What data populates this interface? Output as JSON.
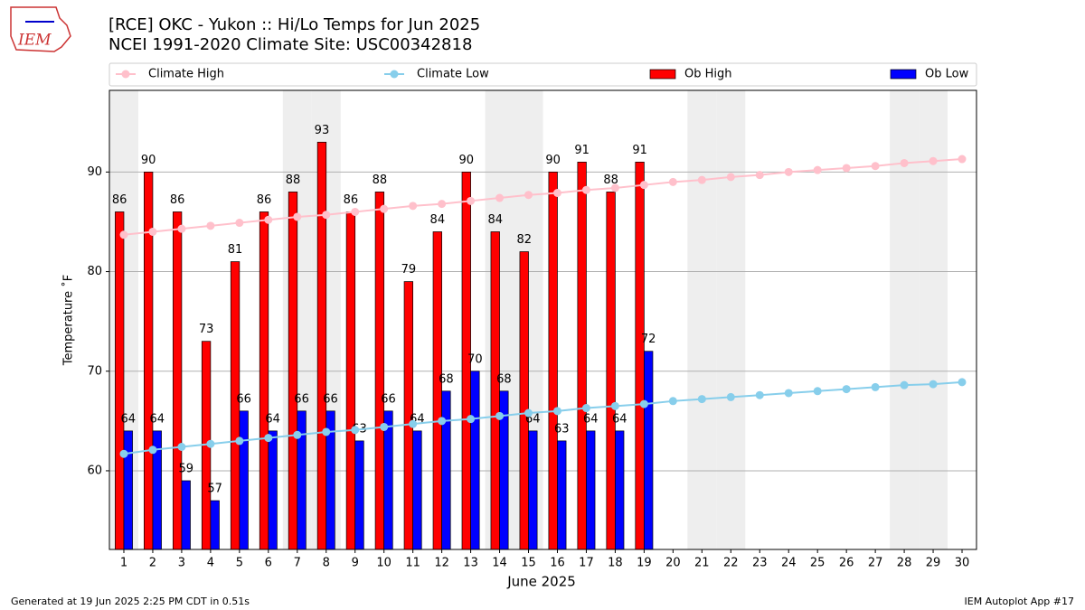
{
  "logo": "IEM",
  "chart_data": {
    "type": "bar_line",
    "title": "[RCE] OKC - Yukon :: Hi/Lo Temps for Jun 2025",
    "subtitle": "NCEI 1991-2020 Climate Site: USC00342818",
    "xlabel": "June 2025",
    "ylabel": "Temperature ˚F",
    "footer_left": "Generated at 19 Jun 2025 2:25 PM CDT in 0.51s",
    "footer_right": "IEM Autoplot App #17",
    "x": [
      1,
      2,
      3,
      4,
      5,
      6,
      7,
      8,
      9,
      10,
      11,
      12,
      13,
      14,
      15,
      16,
      17,
      18,
      19,
      20,
      21,
      22,
      23,
      24,
      25,
      26,
      27,
      28,
      29,
      30
    ],
    "xlim": [
      0.5,
      30.5
    ],
    "xticks": [
      1,
      2,
      3,
      4,
      5,
      6,
      7,
      8,
      9,
      10,
      11,
      12,
      13,
      14,
      15,
      16,
      17,
      18,
      19,
      20,
      21,
      22,
      23,
      24,
      25,
      26,
      27,
      28,
      29,
      30
    ],
    "ylim": [
      52.1,
      98.2
    ],
    "yticks": [
      60,
      70,
      80,
      90
    ],
    "grid": true,
    "shaded": [
      1,
      7,
      8,
      14,
      15,
      21,
      22,
      28,
      29
    ],
    "series": [
      {
        "name": "Climate High",
        "kind": "line",
        "color": "#ffc0cb",
        "values": [
          83.7,
          84.0,
          84.3,
          84.6,
          84.9,
          85.2,
          85.5,
          85.7,
          86.0,
          86.3,
          86.6,
          86.8,
          87.1,
          87.4,
          87.7,
          87.9,
          88.2,
          88.4,
          88.7,
          89.0,
          89.2,
          89.5,
          89.7,
          90.0,
          90.2,
          90.4,
          90.6,
          90.9,
          91.1,
          91.3
        ]
      },
      {
        "name": "Climate Low",
        "kind": "line",
        "color": "#87ceeb",
        "values": [
          61.7,
          62.1,
          62.4,
          62.7,
          63.0,
          63.3,
          63.6,
          63.9,
          64.1,
          64.4,
          64.7,
          65.0,
          65.2,
          65.5,
          65.8,
          66.0,
          66.3,
          66.5,
          66.7,
          67.0,
          67.2,
          67.4,
          67.6,
          67.8,
          68.0,
          68.2,
          68.4,
          68.6,
          68.7,
          68.9
        ]
      },
      {
        "name": "Ob High",
        "kind": "bar",
        "color": "#ff0000",
        "values": [
          86,
          90,
          86,
          73,
          81,
          86,
          88,
          93,
          86,
          88,
          79,
          84,
          90,
          84,
          82,
          90,
          91,
          88,
          91,
          null,
          null,
          null,
          null,
          null,
          null,
          null,
          null,
          null,
          null,
          null
        ]
      },
      {
        "name": "Ob Low",
        "kind": "bar",
        "color": "#0000ff",
        "values": [
          64,
          64,
          59,
          57,
          66,
          64,
          66,
          66,
          63,
          66,
          64,
          68,
          70,
          68,
          64,
          63,
          64,
          64,
          72,
          null,
          null,
          null,
          null,
          null,
          null,
          null,
          null,
          null,
          null,
          null
        ]
      }
    ]
  }
}
